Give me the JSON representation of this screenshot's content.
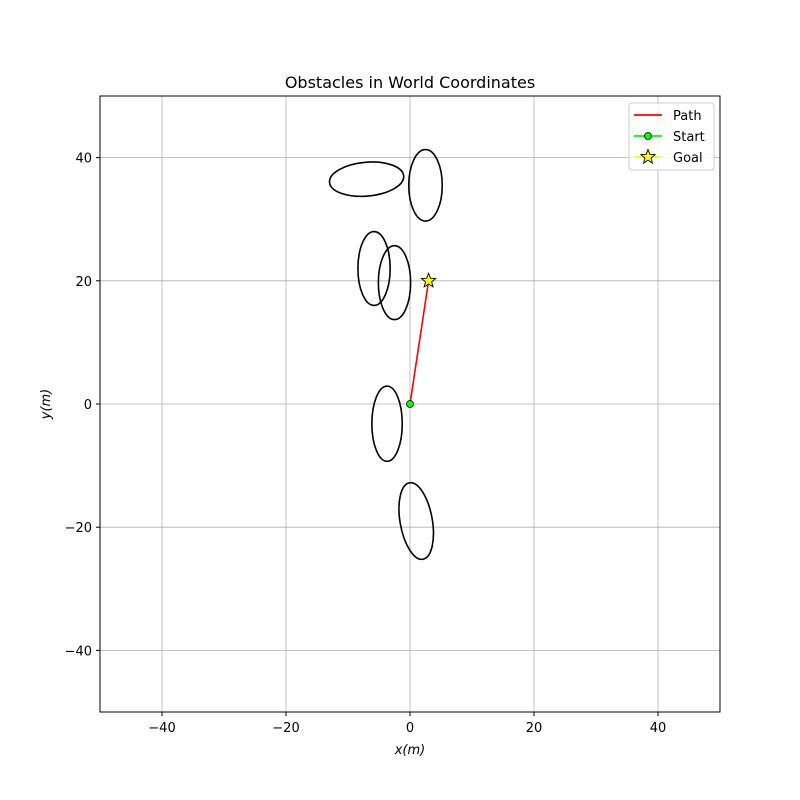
{
  "chart_data": {
    "type": "scatter",
    "title": "Obstacles in World Coordinates",
    "xlabel": "x(m)",
    "ylabel": "y(m)",
    "xlim": [
      -50,
      50
    ],
    "ylim": [
      -50,
      50
    ],
    "xticks": [
      -40,
      -20,
      0,
      20,
      40
    ],
    "yticks": [
      -40,
      -20,
      0,
      20,
      40
    ],
    "xtick_labels": [
      "−40",
      "−20",
      "0",
      "20",
      "40"
    ],
    "ytick_labels": [
      "−40",
      "−20",
      "0",
      "20",
      "40"
    ],
    "grid": true,
    "legend_position": "top-right",
    "obstacles": [
      {
        "cx": -7.0,
        "cy": 36.5,
        "width": 12.0,
        "height": 5.5,
        "angle_deg": 5
      },
      {
        "cx": 2.5,
        "cy": 35.5,
        "width": 5.4,
        "height": 11.6,
        "angle_deg": 0
      },
      {
        "cx": -5.8,
        "cy": 22.0,
        "width": 5.2,
        "height": 12.0,
        "angle_deg": 0
      },
      {
        "cx": -2.5,
        "cy": 19.7,
        "width": 5.2,
        "height": 12.0,
        "angle_deg": 0
      },
      {
        "cx": -3.7,
        "cy": -3.2,
        "width": 4.9,
        "height": 12.2,
        "angle_deg": 0
      },
      {
        "cx": 1.0,
        "cy": -19.0,
        "width": 5.2,
        "height": 12.6,
        "angle_deg": 10
      }
    ],
    "series": [
      {
        "name": "Path",
        "x": [
          0,
          3
        ],
        "y": [
          0,
          20
        ],
        "color": "#ff0000",
        "marker": "none"
      },
      {
        "name": "Start",
        "x": [
          0
        ],
        "y": [
          0
        ],
        "color": "#00ff00",
        "marker": "circle"
      },
      {
        "name": "Goal",
        "x": [
          3
        ],
        "y": [
          20
        ],
        "color": "#ffff00",
        "marker": "star"
      }
    ]
  }
}
